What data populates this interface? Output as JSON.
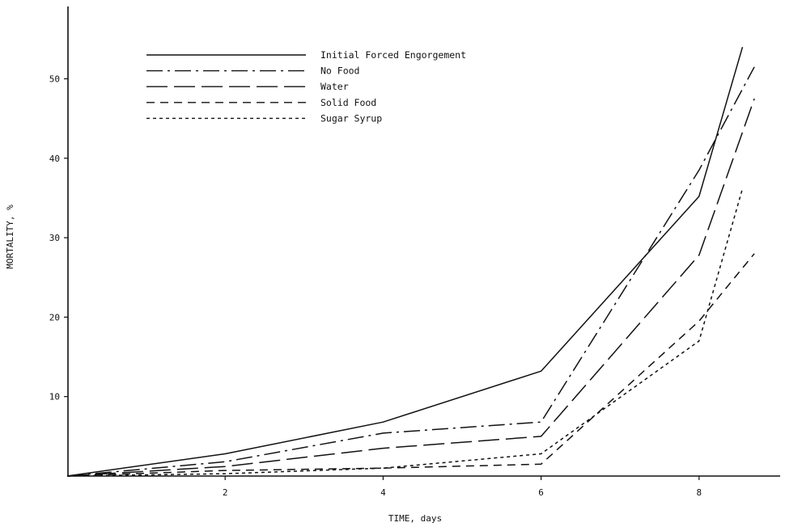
{
  "chart_data": {
    "type": "line",
    "xlabel": "TIME, days",
    "ylabel": "MORTALITY, %",
    "xlim": [
      0,
      9
    ],
    "ylim": [
      0,
      55
    ],
    "x_ticks": [
      2,
      4,
      6,
      8
    ],
    "y_ticks": [
      10,
      20,
      30,
      40,
      50
    ],
    "grid": false,
    "legend_position": "top-left",
    "line_color": "#111111",
    "series": [
      {
        "name": "Initial Forced Engorgement",
        "dash": "solid",
        "x": [
          0,
          2,
          4,
          6,
          8,
          8.55
        ],
        "y": [
          0,
          2.8,
          6.8,
          13.2,
          35.2,
          54.0
        ]
      },
      {
        "name": "No Food",
        "dash": "dash-dot",
        "x": [
          0,
          2,
          4,
          6,
          8,
          8.7
        ],
        "y": [
          0,
          1.8,
          5.4,
          6.8,
          38.5,
          51.5
        ]
      },
      {
        "name": "Water",
        "dash": "long-dash",
        "x": [
          0,
          2,
          4,
          6,
          8,
          8.7
        ],
        "y": [
          0,
          1.2,
          3.5,
          5.0,
          27.8,
          47.5
        ]
      },
      {
        "name": "Solid Food",
        "dash": "dash",
        "x": [
          0,
          2,
          4,
          6,
          8,
          8.7
        ],
        "y": [
          0,
          0.7,
          1.0,
          1.5,
          19.5,
          28.0
        ]
      },
      {
        "name": "Sugar Syrup",
        "dash": "short-dash",
        "x": [
          0,
          2,
          4,
          6,
          8,
          8.55
        ],
        "y": [
          0,
          0.3,
          1.0,
          2.8,
          17.0,
          36.2
        ]
      }
    ]
  }
}
